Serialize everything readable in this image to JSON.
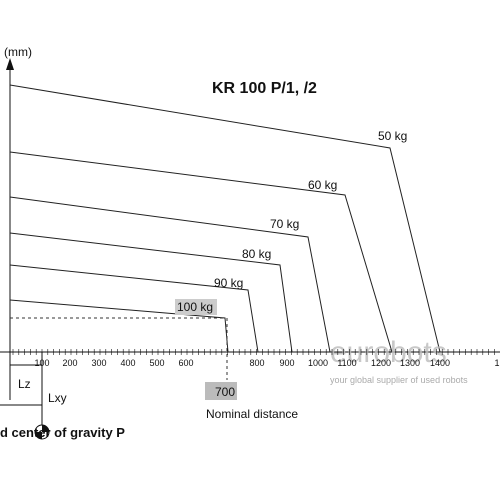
{
  "header": {
    "unit": "(mm)",
    "title": "KR 100 P/1, /2"
  },
  "curves": [
    {
      "label": "50 kg"
    },
    {
      "label": "60 kg"
    },
    {
      "label": "70 kg"
    },
    {
      "label": "80 kg"
    },
    {
      "label": "90 kg"
    },
    {
      "label": "100 kg"
    }
  ],
  "x_axis": {
    "ticks": [
      "100",
      "200",
      "300",
      "400",
      "500",
      "600",
      "800",
      "900",
      "1000",
      "1100",
      "1200",
      "1300",
      "1400",
      "1"
    ]
  },
  "nominal": {
    "value": "700",
    "label": "Nominal distance"
  },
  "legend": {
    "lz": "Lz",
    "lxy": "Lxy",
    "caption": "d center of gravity P"
  },
  "watermark": {
    "brand": "eurobots",
    "tagline": "your global supplier of used robots"
  }
}
